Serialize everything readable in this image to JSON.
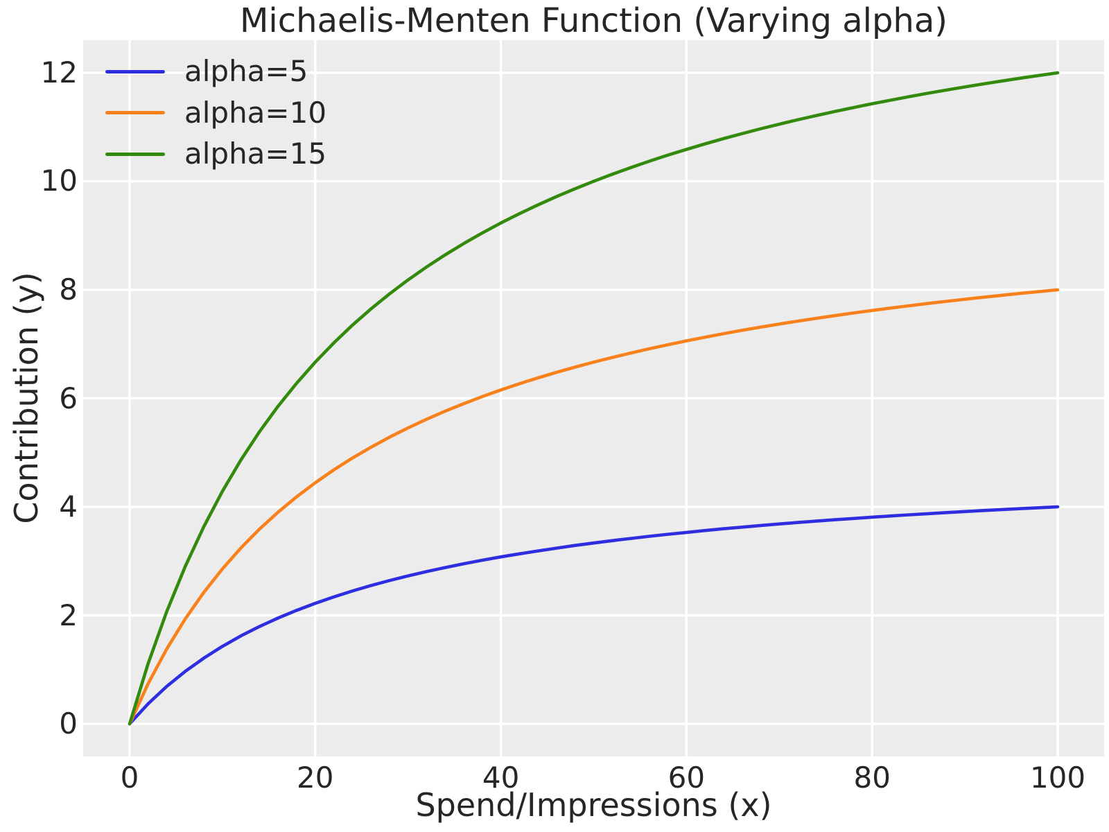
{
  "title": "Michaelis-Menten Function (Varying alpha)",
  "xlabel": "Spend/Impressions (x)",
  "ylabel": "Contribution (y)",
  "colors": {
    "plot_background": "#ececec",
    "grid": "#ffffff",
    "text": "#262626",
    "series_blue": "#2e2ee0",
    "series_orange": "#f8811c",
    "series_green": "#338a0d"
  },
  "chart_data": {
    "type": "line",
    "title": "Michaelis-Menten Function (Varying alpha)",
    "xlabel": "Spend/Impressions (x)",
    "ylabel": "Contribution (y)",
    "grid": true,
    "legend_position": "upper left",
    "xlim": [
      -5,
      105
    ],
    "ylim": [
      -0.6,
      12.6
    ],
    "xticks": [
      0,
      20,
      40,
      60,
      80,
      100
    ],
    "yticks": [
      0,
      2,
      4,
      6,
      8,
      10,
      12
    ],
    "x": [
      0,
      2,
      4,
      6,
      8,
      10,
      12,
      14,
      16,
      18,
      20,
      22,
      24,
      26,
      28,
      30,
      32,
      34,
      36,
      38,
      40,
      42,
      44,
      46,
      48,
      50,
      52,
      54,
      56,
      58,
      60,
      62,
      64,
      66,
      68,
      70,
      72,
      74,
      76,
      78,
      80,
      82,
      84,
      86,
      88,
      90,
      92,
      94,
      96,
      98,
      100
    ],
    "series": [
      {
        "name": "alpha=5",
        "color": "#2e2ee0",
        "values": [
          0,
          0.37,
          0.69,
          0.968,
          1.212,
          1.429,
          1.622,
          1.795,
          1.951,
          2.093,
          2.222,
          2.34,
          2.449,
          2.549,
          2.642,
          2.727,
          2.807,
          2.881,
          2.951,
          3.016,
          3.077,
          3.134,
          3.188,
          3.239,
          3.288,
          3.333,
          3.377,
          3.418,
          3.457,
          3.494,
          3.529,
          3.563,
          3.596,
          3.626,
          3.656,
          3.684,
          3.711,
          3.737,
          3.762,
          3.786,
          3.81,
          3.832,
          3.853,
          3.874,
          3.894,
          3.913,
          3.932,
          3.95,
          3.967,
          3.984,
          4.0
        ]
      },
      {
        "name": "alpha=10",
        "color": "#f8811c",
        "values": [
          0,
          0.741,
          1.379,
          1.935,
          2.424,
          2.857,
          3.243,
          3.59,
          3.902,
          4.186,
          4.444,
          4.681,
          4.898,
          5.098,
          5.283,
          5.455,
          5.614,
          5.763,
          5.902,
          6.032,
          6.154,
          6.269,
          6.377,
          6.479,
          6.575,
          6.667,
          6.753,
          6.835,
          6.914,
          6.988,
          7.059,
          7.126,
          7.191,
          7.253,
          7.312,
          7.368,
          7.423,
          7.475,
          7.525,
          7.573,
          7.619,
          7.664,
          7.706,
          7.748,
          7.788,
          7.826,
          7.863,
          7.899,
          7.934,
          7.967,
          8.0
        ]
      },
      {
        "name": "alpha=15",
        "color": "#338a0d",
        "values": [
          0,
          1.111,
          2.069,
          2.903,
          3.636,
          4.286,
          4.865,
          5.385,
          5.854,
          6.279,
          6.667,
          7.021,
          7.347,
          7.647,
          7.925,
          8.182,
          8.421,
          8.644,
          8.852,
          9.048,
          9.231,
          9.403,
          9.565,
          9.718,
          9.863,
          10.0,
          10.13,
          10.253,
          10.37,
          10.482,
          10.588,
          10.69,
          10.787,
          10.879,
          10.968,
          11.053,
          11.134,
          11.212,
          11.287,
          11.359,
          11.429,
          11.495,
          11.56,
          11.622,
          11.681,
          11.739,
          11.795,
          11.849,
          11.901,
          11.951,
          12.0
        ]
      }
    ]
  }
}
